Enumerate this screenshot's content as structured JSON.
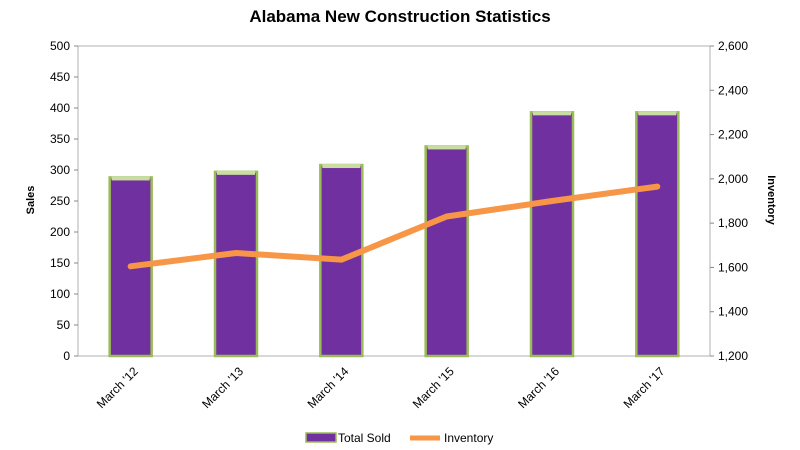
{
  "chart_data": {
    "type": "bar",
    "title": "Alabama New Construction Statistics",
    "categories": [
      "March '12",
      "March '13",
      "March '14",
      "March '15",
      "March '16",
      "March '17"
    ],
    "series": [
      {
        "name": "Total Sold",
        "type": "bar",
        "axis": "left",
        "color": "#7030A0",
        "border_color": "#9BBB59",
        "values": [
          288,
          297,
          308,
          338,
          393,
          393
        ]
      },
      {
        "name": "Inventory",
        "type": "line",
        "axis": "right",
        "color": "#F79646",
        "values": [
          1605,
          1665,
          1635,
          1830,
          1900,
          1965
        ]
      }
    ],
    "ylabel": "Sales",
    "y2label": "Inventory",
    "ylim": [
      0,
      500
    ],
    "y2lim": [
      1200,
      2600
    ],
    "yticks": [
      "0",
      "50",
      "100",
      "150",
      "200",
      "250",
      "300",
      "350",
      "400",
      "450",
      "500"
    ],
    "y2ticks": [
      "1,200",
      "1,400",
      "1,600",
      "1,800",
      "2,000",
      "2,200",
      "2,400",
      "2,600"
    ],
    "legend_position": "bottom",
    "grid": false
  }
}
